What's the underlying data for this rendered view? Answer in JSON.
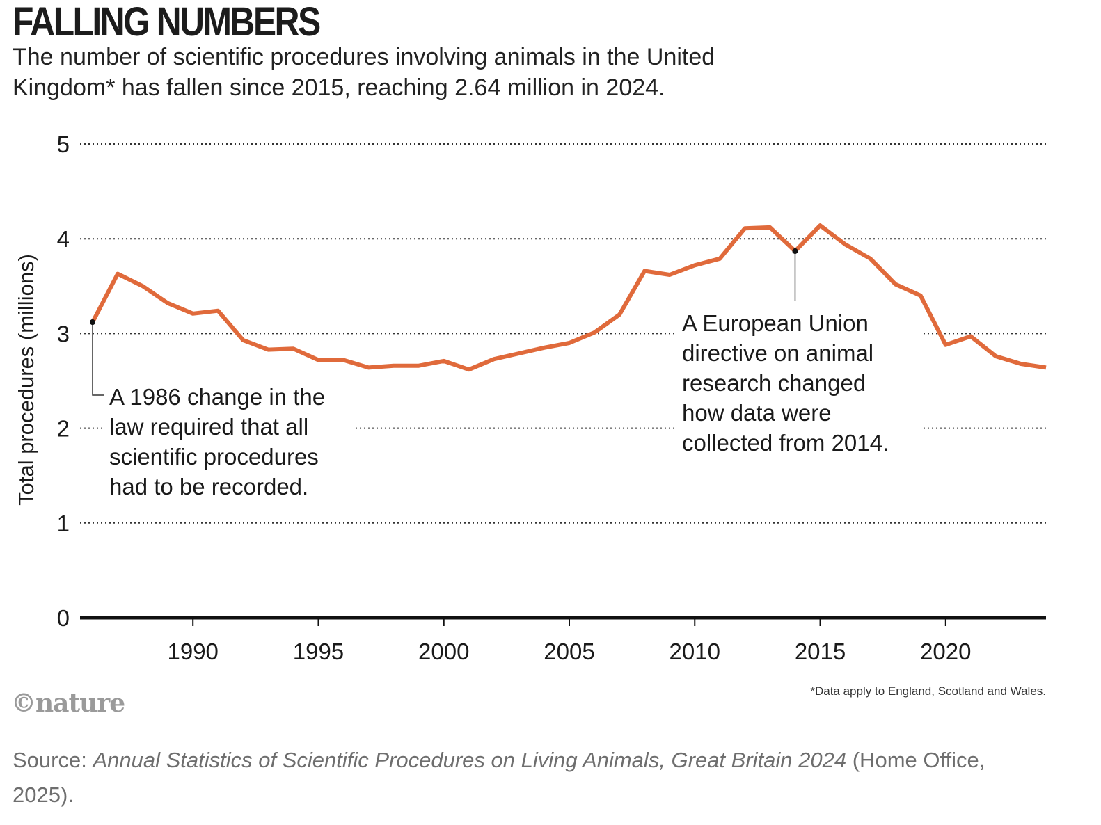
{
  "title": "FALLING NUMBERS",
  "subtitle": "The number of scientific procedures involving animals in the United Kingdom* has fallen since 2015, reaching 2.64 million in 2024.",
  "brand": "©nature",
  "source": {
    "prefix": "Source: ",
    "title": "Annual Statistics of Scientific Procedures on Living Animals, Great Britain 2024",
    "suffix": " (Home Office, 2025)."
  },
  "colors": {
    "line": "#e06a3b",
    "text": "#1a1a1a",
    "grid": "#333333"
  },
  "chart_data": {
    "type": "line",
    "title": "FALLING NUMBERS",
    "ylabel": "Total procedures (millions)",
    "xlabel": "",
    "xlim": [
      1986,
      2024
    ],
    "ylim": [
      0,
      5
    ],
    "yticks": [
      0,
      1,
      2,
      3,
      4,
      5
    ],
    "xticks": [
      1990,
      1995,
      2000,
      2005,
      2010,
      2015,
      2020
    ],
    "grid": "horizontal dotted",
    "footnote": "*Data apply to England, Scotland and Wales.",
    "series": [
      {
        "name": "Total procedures",
        "x": [
          1986,
          1987,
          1988,
          1989,
          1990,
          1991,
          1992,
          1993,
          1994,
          1995,
          1996,
          1997,
          1998,
          1999,
          2000,
          2001,
          2002,
          2003,
          2004,
          2005,
          2006,
          2007,
          2008,
          2009,
          2010,
          2011,
          2012,
          2013,
          2014,
          2015,
          2016,
          2017,
          2018,
          2019,
          2020,
          2021,
          2022,
          2023,
          2024
        ],
        "values": [
          3.12,
          3.63,
          3.5,
          3.32,
          3.21,
          3.24,
          2.93,
          2.83,
          2.84,
          2.72,
          2.72,
          2.64,
          2.66,
          2.66,
          2.71,
          2.62,
          2.73,
          2.79,
          2.85,
          2.9,
          3.01,
          3.2,
          3.66,
          3.62,
          3.72,
          3.79,
          4.11,
          4.12,
          3.87,
          4.14,
          3.94,
          3.79,
          3.52,
          3.4,
          2.88,
          2.97,
          2.76,
          2.68,
          2.64
        ]
      }
    ],
    "annotations": [
      {
        "x": 1986,
        "y": 3.12,
        "text": [
          "A 1986 change in the",
          "law required that all",
          "scientific procedures",
          "had to be recorded."
        ]
      },
      {
        "x": 2014,
        "y": 3.87,
        "text": [
          "A European Union",
          "directive on animal",
          "research changed",
          "how data were",
          "collected from 2014."
        ]
      }
    ]
  }
}
